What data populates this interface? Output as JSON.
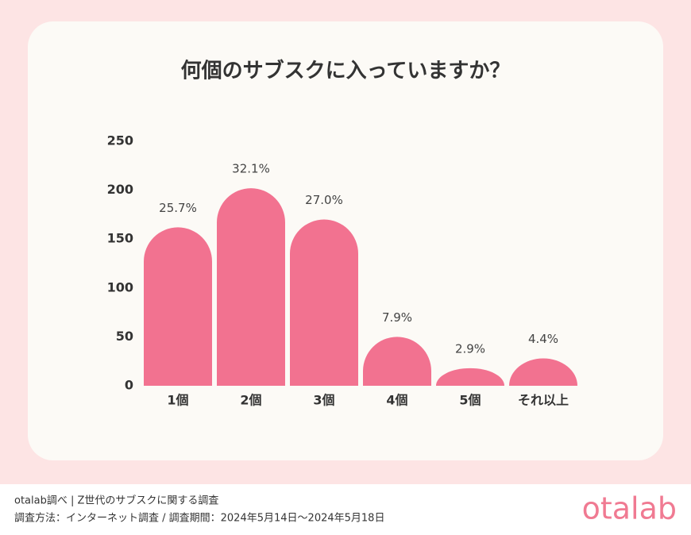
{
  "chart_data": {
    "type": "bar",
    "title": "何個のサブスクに入っていますか？",
    "categories": [
      "1個",
      "2個",
      "3個",
      "4個",
      "5個",
      "それ以上"
    ],
    "values": [
      162,
      202,
      170,
      50,
      18,
      28
    ],
    "data_labels": [
      "25.7%",
      "32.1%",
      "27.0%",
      "7.9%",
      "2.9%",
      "4.4%"
    ],
    "color": "#f27290",
    "ylim": [
      0,
      250
    ],
    "yticks": [
      0,
      50,
      100,
      150,
      200,
      250
    ],
    "grid": false
  },
  "footer": {
    "source": "otalab調べ | Z世代のサブスクに関する調査",
    "method": "調査方法：インターネット調査 / 調査期間：2024年5月14日〜2024年5月18日",
    "logo": "otalab"
  }
}
